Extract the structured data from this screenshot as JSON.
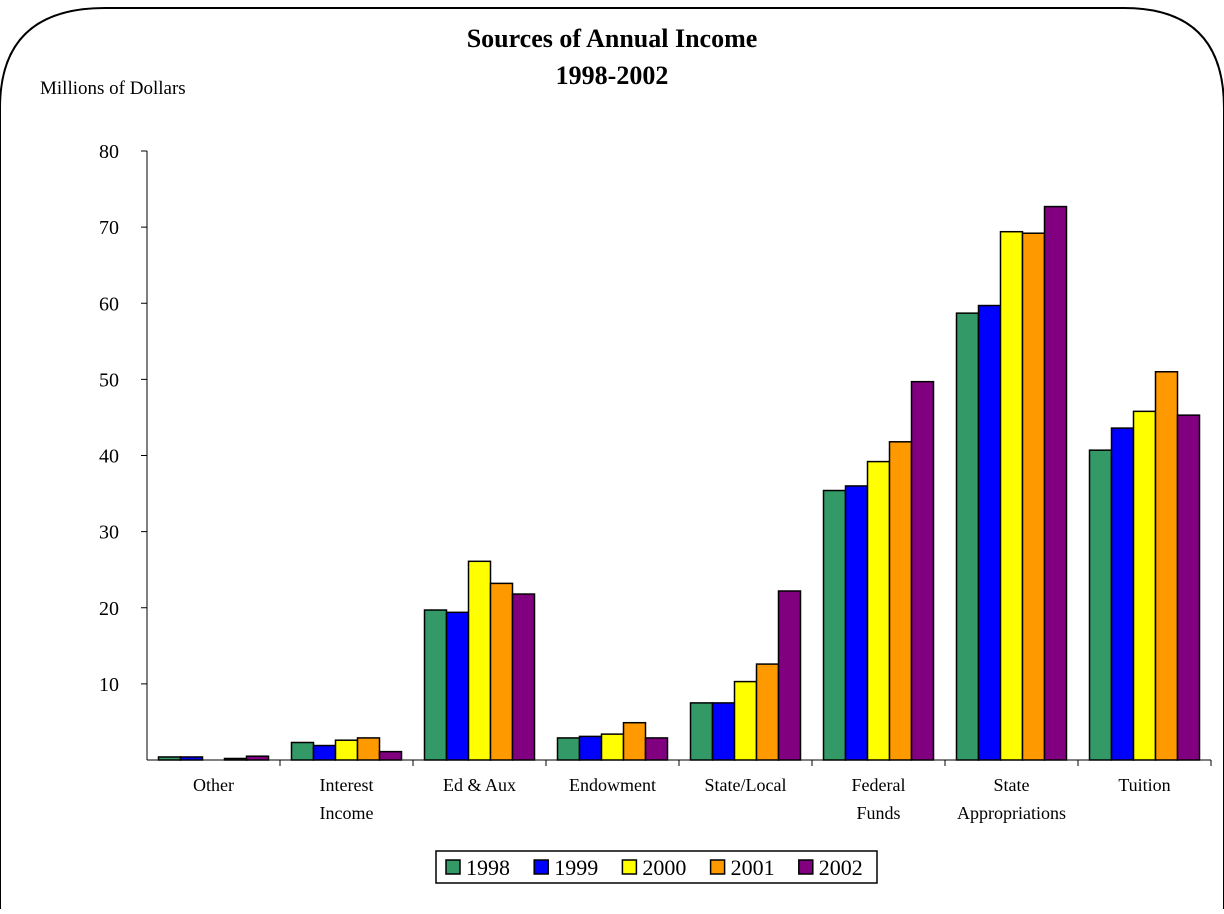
{
  "chart_data": {
    "type": "bar",
    "title": "Sources of Annual Income",
    "subtitle": "1998-2002",
    "ylabel": "Millions of Dollars",
    "xlabel": "",
    "ylim": [
      0,
      80
    ],
    "yticks": [
      10,
      20,
      30,
      40,
      50,
      60,
      70,
      80
    ],
    "grid": false,
    "legend_position": "bottom",
    "categories": [
      [
        "Other"
      ],
      [
        "Interest",
        "Income"
      ],
      [
        "Ed & Aux"
      ],
      [
        "Endowment"
      ],
      [
        "State/Local"
      ],
      [
        "Federal",
        "Funds"
      ],
      [
        "State",
        "Appropriations"
      ],
      [
        "Tuition"
      ]
    ],
    "series": [
      {
        "name": "1998",
        "color": "#339966",
        "values": [
          0.4,
          2.3,
          19.7,
          2.9,
          7.5,
          35.4,
          58.7,
          40.7
        ]
      },
      {
        "name": "1999",
        "color": "#0000ff",
        "values": [
          0.4,
          1.9,
          19.4,
          3.1,
          7.5,
          36.0,
          59.7,
          43.6
        ]
      },
      {
        "name": "2000",
        "color": "#ffff00",
        "values": [
          0.0,
          2.6,
          26.1,
          3.4,
          10.3,
          39.2,
          69.4,
          45.8
        ]
      },
      {
        "name": "2001",
        "color": "#ff9900",
        "values": [
          0.2,
          2.9,
          23.2,
          4.9,
          12.6,
          41.8,
          69.2,
          51.0
        ]
      },
      {
        "name": "2002",
        "color": "#800080",
        "values": [
          0.5,
          1.1,
          21.8,
          2.9,
          22.2,
          49.7,
          72.7,
          45.3
        ]
      }
    ]
  }
}
